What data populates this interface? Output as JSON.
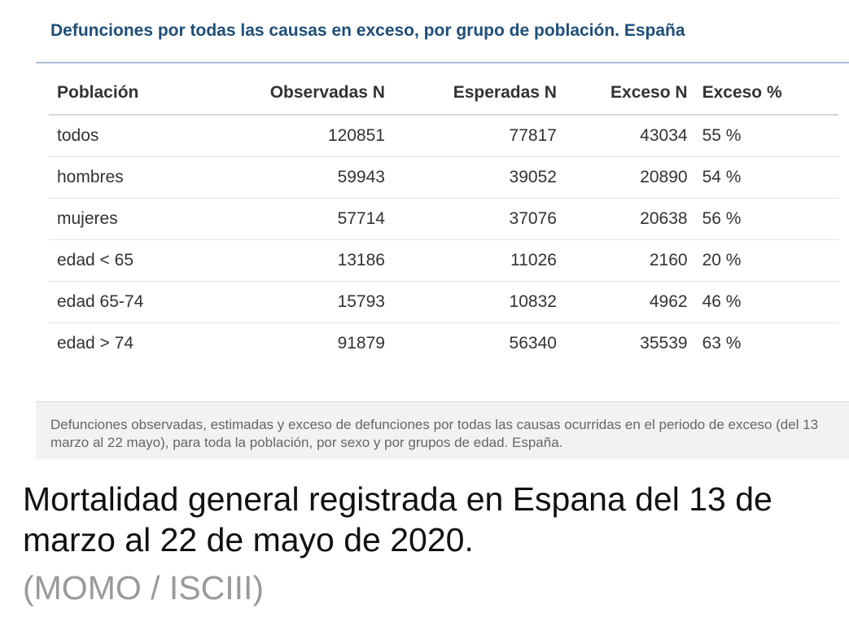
{
  "figure": {
    "title": "Defunciones por todas las causas en exceso, por grupo de población. España",
    "columns": [
      "Población",
      "Observadas N",
      "Esperadas N",
      "Exceso N",
      "Exceso %"
    ],
    "rows": [
      [
        "todos",
        "120851",
        "77817",
        "43034",
        "55 %"
      ],
      [
        "hombres",
        "59943",
        "39052",
        "20890",
        "54 %"
      ],
      [
        "mujeres",
        "57714",
        "37076",
        "20638",
        "56 %"
      ],
      [
        "edad < 65",
        "13186",
        "11026",
        "2160",
        "20 %"
      ],
      [
        "edad 65-74",
        "15793",
        "10832",
        "4962",
        "46 %"
      ],
      [
        "edad > 74",
        "91879",
        "56340",
        "35539",
        "63 %"
      ]
    ],
    "caption": "Defunciones observadas, estimadas y exceso de defunciones por todas las causas ocurridas en el periodo de exceso (del 13 marzo al 22 mayo), para toda la población, por sexo y por grupos de edad. España."
  },
  "post": {
    "title": "Mortalidad general registrada en Espana del 13 de marzo al 22 de mayo de 2020.",
    "source": "(MOMO / ISCIII)"
  },
  "colors": {
    "title_blue": "#1f4e79",
    "rule": "#a9bfd6",
    "caption_bg": "#f2f2f2",
    "source_gray": "#9a9a9a"
  }
}
